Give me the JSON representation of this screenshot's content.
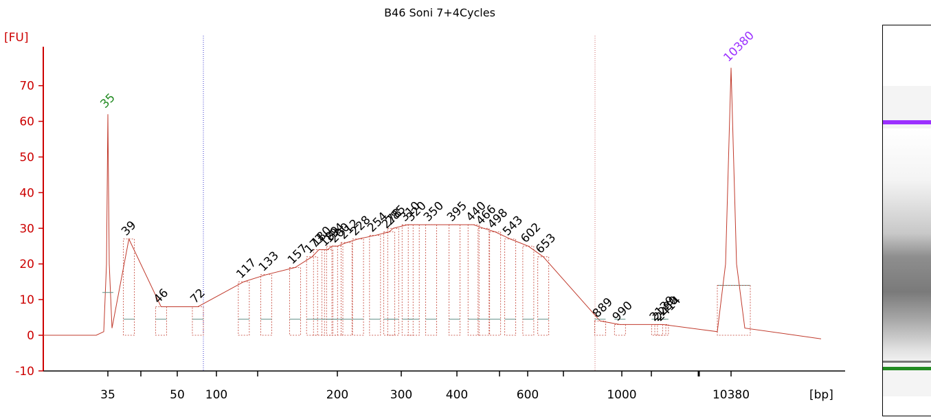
{
  "chart_data": {
    "type": "line",
    "title": "B46 Soni 7+4Cycles",
    "ylabel": "[FU]",
    "xlabel": "[bp]",
    "ylim": [
      -10,
      75
    ],
    "y_ticks": [
      -10,
      0,
      10,
      20,
      30,
      40,
      50,
      60,
      70
    ],
    "x_tick_labels": [
      "35",
      "50",
      "100",
      "200",
      "300",
      "400",
      "600",
      "1000",
      "10380"
    ],
    "lower_marker": {
      "label": "35",
      "size_bp": 35,
      "height_fu": 62,
      "color": "#228b22"
    },
    "upper_marker": {
      "label": "10380",
      "size_bp": 10380,
      "height_fu": 75,
      "color": "#9b30ff"
    },
    "peak_labels": [
      {
        "label": "39",
        "size_bp": 39,
        "height_fu": 27
      },
      {
        "label": "46",
        "size_bp": 46,
        "height_fu": 8
      },
      {
        "label": "72",
        "size_bp": 72,
        "height_fu": 8
      },
      {
        "label": "117",
        "size_bp": 117,
        "height_fu": 15
      },
      {
        "label": "133",
        "size_bp": 133,
        "height_fu": 17
      },
      {
        "label": "157",
        "size_bp": 157,
        "height_fu": 19
      },
      {
        "label": "173",
        "size_bp": 173,
        "height_fu": 22
      },
      {
        "label": "180",
        "size_bp": 180,
        "height_fu": 24
      },
      {
        "label": "189",
        "size_bp": 189,
        "height_fu": 24
      },
      {
        "label": "194",
        "size_bp": 194,
        "height_fu": 25
      },
      {
        "label": "200",
        "size_bp": 200,
        "height_fu": 25
      },
      {
        "label": "212",
        "size_bp": 212,
        "height_fu": 26
      },
      {
        "label": "228",
        "size_bp": 228,
        "height_fu": 27
      },
      {
        "label": "254",
        "size_bp": 254,
        "height_fu": 28
      },
      {
        "label": "278",
        "size_bp": 278,
        "height_fu": 29
      },
      {
        "label": "285",
        "size_bp": 285,
        "height_fu": 30
      },
      {
        "label": "310",
        "size_bp": 310,
        "height_fu": 31
      },
      {
        "label": "320",
        "size_bp": 320,
        "height_fu": 31
      },
      {
        "label": "350",
        "size_bp": 350,
        "height_fu": 31
      },
      {
        "label": "395",
        "size_bp": 395,
        "height_fu": 31
      },
      {
        "label": "440",
        "size_bp": 440,
        "height_fu": 31
      },
      {
        "label": "466",
        "size_bp": 466,
        "height_fu": 30
      },
      {
        "label": "498",
        "size_bp": 498,
        "height_fu": 29
      },
      {
        "label": "543",
        "size_bp": 543,
        "height_fu": 27
      },
      {
        "label": "602",
        "size_bp": 602,
        "height_fu": 25
      },
      {
        "label": "653",
        "size_bp": 653,
        "height_fu": 22
      },
      {
        "label": "889",
        "size_bp": 889,
        "height_fu": 4
      },
      {
        "label": "990",
        "size_bp": 990,
        "height_fu": 3
      },
      {
        "label": "2129",
        "size_bp": 2129,
        "height_fu": 3
      },
      {
        "label": "2280",
        "size_bp": 2280,
        "height_fu": 3
      },
      {
        "label": "2414",
        "size_bp": 2414,
        "height_fu": 3
      }
    ],
    "colors": {
      "axis": "#cc0000",
      "trace": "#c0392b",
      "baseline": "#5f8f86",
      "lower_marker_band": "#228b22",
      "upper_marker_band": "#9b30ff"
    },
    "grid": false
  }
}
